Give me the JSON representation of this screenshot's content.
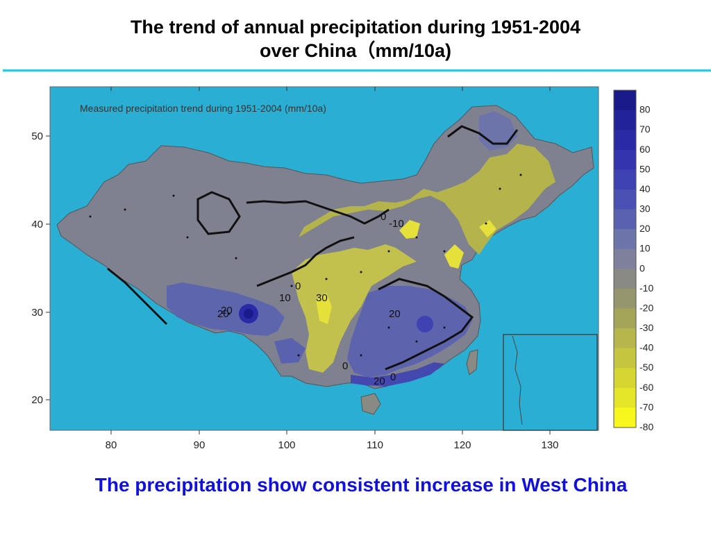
{
  "slide": {
    "title_line1": "The trend of annual precipitation during 1951-2004",
    "title_line2": "over China（mm/10a)",
    "caption": "The precipitation show consistent increase in West China"
  },
  "map": {
    "inner_label": "Measured precipitation trend during 1951-2004 (mm/10a)",
    "x_ticks": [
      "80",
      "90",
      "100",
      "110",
      "120",
      "130"
    ],
    "y_ticks": [
      "50",
      "40",
      "30",
      "20"
    ],
    "contour_labels": [
      "0",
      "-10",
      "0",
      "10",
      "30",
      "20",
      "20",
      "20",
      "0",
      "0",
      "20"
    ],
    "ocean_color": "#2aaed3",
    "legend": {
      "levels": [
        "80",
        "70",
        "60",
        "50",
        "40",
        "30",
        "20",
        "10",
        "0",
        "-10",
        "-20",
        "-30",
        "-40",
        "-50",
        "-60",
        "-70",
        "-80"
      ],
      "colors": [
        "#1a1a8a",
        "#22229a",
        "#2a2aa6",
        "#3434ae",
        "#3f42b2",
        "#4b51b4",
        "#5a62b0",
        "#6c74aa",
        "#7f819c",
        "#8a8a84",
        "#95956e",
        "#a5a55a",
        "#b6b64c",
        "#c6c63e",
        "#d6d632",
        "#e6e628",
        "#f7f71e"
      ]
    }
  }
}
